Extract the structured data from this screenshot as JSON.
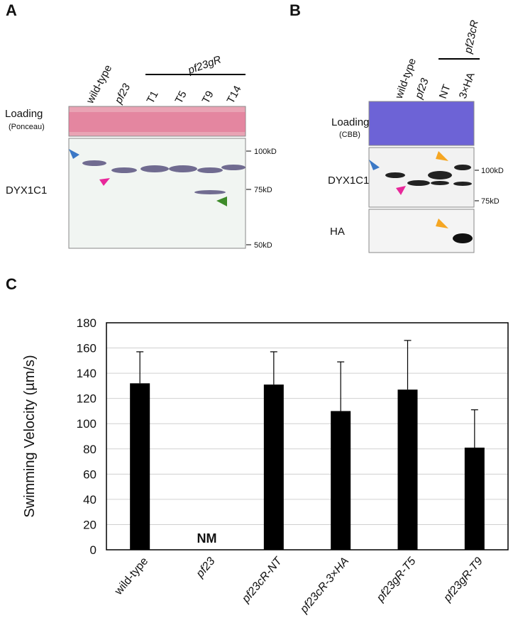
{
  "panel_a": {
    "label": "A",
    "lanes": [
      "wild-type",
      "pf23",
      "T1",
      "T5",
      "T9",
      "T14"
    ],
    "group_label": "pf23gR",
    "loading_label": "Loading",
    "stain_label": "(Ponceau)",
    "blot_label": "DYX1C1",
    "markers": [
      "100kD",
      "75kD",
      "50kD"
    ]
  },
  "panel_b": {
    "label": "B",
    "lanes": [
      "wild-type",
      "pf23",
      "NT",
      "3×HA"
    ],
    "group_label": "pf23cR",
    "loading_label": "Loading",
    "stain_label": "(CBB)",
    "blot_labels": [
      "DYX1C1",
      "HA"
    ],
    "markers": [
      "100kD",
      "75kD"
    ]
  },
  "chart_data": {
    "type": "bar",
    "panel_label": "C",
    "y_label": "Swimming Velocity (µm/s)",
    "categories": [
      "wild-type",
      "pf23",
      "pf23cR-NT",
      "pf23cR-3×HA",
      "pf23gR-T5",
      "pf23gR-T9"
    ],
    "values": [
      132,
      0,
      131,
      110,
      127,
      81
    ],
    "errors": [
      25,
      null,
      26,
      39,
      39,
      30
    ],
    "value_labels": [
      null,
      "NM",
      null,
      null,
      null,
      null
    ],
    "color": "#000000",
    "ylim": [
      0,
      180
    ],
    "yticks": [
      0,
      20,
      40,
      60,
      80,
      100,
      120,
      140,
      160,
      180
    ],
    "grid": true
  }
}
